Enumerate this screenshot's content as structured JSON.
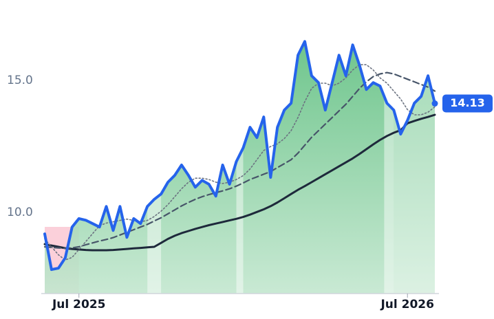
{
  "chart_data": {
    "type": "line",
    "categories": [
      null,
      null,
      null,
      null,
      null,
      "Jul 2025",
      null,
      null,
      null,
      null,
      null,
      null,
      null,
      null,
      null,
      null,
      null,
      null,
      null,
      null,
      null,
      null,
      null,
      null,
      null,
      null,
      null,
      null,
      null,
      null,
      null,
      null,
      null,
      null,
      null,
      null,
      null,
      null,
      null,
      null,
      null,
      null,
      null,
      null,
      null,
      null,
      null,
      null,
      null,
      null,
      null,
      null,
      null,
      "Jul 2026",
      null,
      null,
      null,
      null
    ],
    "series": [
      {
        "color": "#2563eb",
        "line_style": "solid",
        "width": 4,
        "area": true,
        "values": [
          9.19,
          7.84,
          7.89,
          8.28,
          9.45,
          9.77,
          9.71,
          9.58,
          9.45,
          10.23,
          9.32,
          10.23,
          9.06,
          9.77,
          9.58,
          10.23,
          10.5,
          10.7,
          11.15,
          11.41,
          11.8,
          11.41,
          10.96,
          11.22,
          11.07,
          10.62,
          11.8,
          11.07,
          11.93,
          12.45,
          13.23,
          12.84,
          13.62,
          11.33,
          13.23,
          13.88,
          14.14,
          15.96,
          16.48,
          15.18,
          14.92,
          13.88,
          14.92,
          15.96,
          15.18,
          16.35,
          15.57,
          14.66,
          14.92,
          14.79,
          14.14,
          13.88,
          12.97,
          13.49,
          14.14,
          14.4,
          15.18,
          14.13
        ]
      },
      {
        "color": "#6b7280",
        "line_style": "dotted",
        "width": 1.6,
        "values": [
          9.0,
          8.7,
          8.4,
          8.2,
          8.3,
          8.6,
          8.9,
          9.2,
          9.5,
          9.6,
          9.65,
          9.7,
          9.75,
          9.7,
          9.65,
          9.7,
          9.85,
          10.05,
          10.3,
          10.6,
          10.9,
          11.15,
          11.3,
          11.3,
          11.25,
          11.15,
          11.1,
          11.15,
          11.25,
          11.4,
          11.65,
          12.0,
          12.35,
          12.5,
          12.6,
          12.8,
          13.1,
          13.6,
          14.2,
          14.7,
          14.9,
          14.9,
          14.8,
          14.9,
          15.1,
          15.4,
          15.6,
          15.6,
          15.4,
          15.1,
          14.9,
          14.6,
          14.3,
          13.9,
          13.7,
          13.7,
          13.8,
          14.0
        ]
      },
      {
        "color": "#475569",
        "line_style": "dashed",
        "width": 2.2,
        "values": [
          8.7,
          8.68,
          8.66,
          8.65,
          8.66,
          8.7,
          8.78,
          8.85,
          8.92,
          8.98,
          9.05,
          9.15,
          9.25,
          9.35,
          9.45,
          9.55,
          9.68,
          9.8,
          9.95,
          10.1,
          10.25,
          10.38,
          10.5,
          10.6,
          10.68,
          10.75,
          10.82,
          10.9,
          11.0,
          11.12,
          11.25,
          11.35,
          11.45,
          11.55,
          11.7,
          11.85,
          12.0,
          12.25,
          12.55,
          12.85,
          13.1,
          13.35,
          13.6,
          13.85,
          14.1,
          14.4,
          14.7,
          14.95,
          15.15,
          15.25,
          15.3,
          15.25,
          15.15,
          15.05,
          14.95,
          14.85,
          14.75,
          14.6
        ]
      },
      {
        "color": "#1e293b",
        "line_style": "solid",
        "width": 3,
        "values": [
          8.8,
          8.75,
          8.7,
          8.65,
          8.62,
          8.6,
          8.58,
          8.57,
          8.57,
          8.57,
          8.58,
          8.6,
          8.62,
          8.64,
          8.66,
          8.68,
          8.7,
          8.85,
          9.0,
          9.12,
          9.22,
          9.3,
          9.38,
          9.45,
          9.52,
          9.58,
          9.64,
          9.7,
          9.76,
          9.83,
          9.92,
          10.02,
          10.12,
          10.24,
          10.38,
          10.54,
          10.7,
          10.86,
          11.0,
          11.15,
          11.3,
          11.45,
          11.6,
          11.75,
          11.9,
          12.05,
          12.22,
          12.4,
          12.58,
          12.75,
          12.9,
          13.02,
          13.12,
          13.38,
          13.47,
          13.55,
          13.62,
          13.7
        ]
      }
    ],
    "ylim": [
      6.93,
      18.05
    ],
    "yticks": [
      {
        "value": 10,
        "label": "10.0"
      },
      {
        "value": 15,
        "label": "15.0"
      }
    ],
    "grid": false
  }
}
